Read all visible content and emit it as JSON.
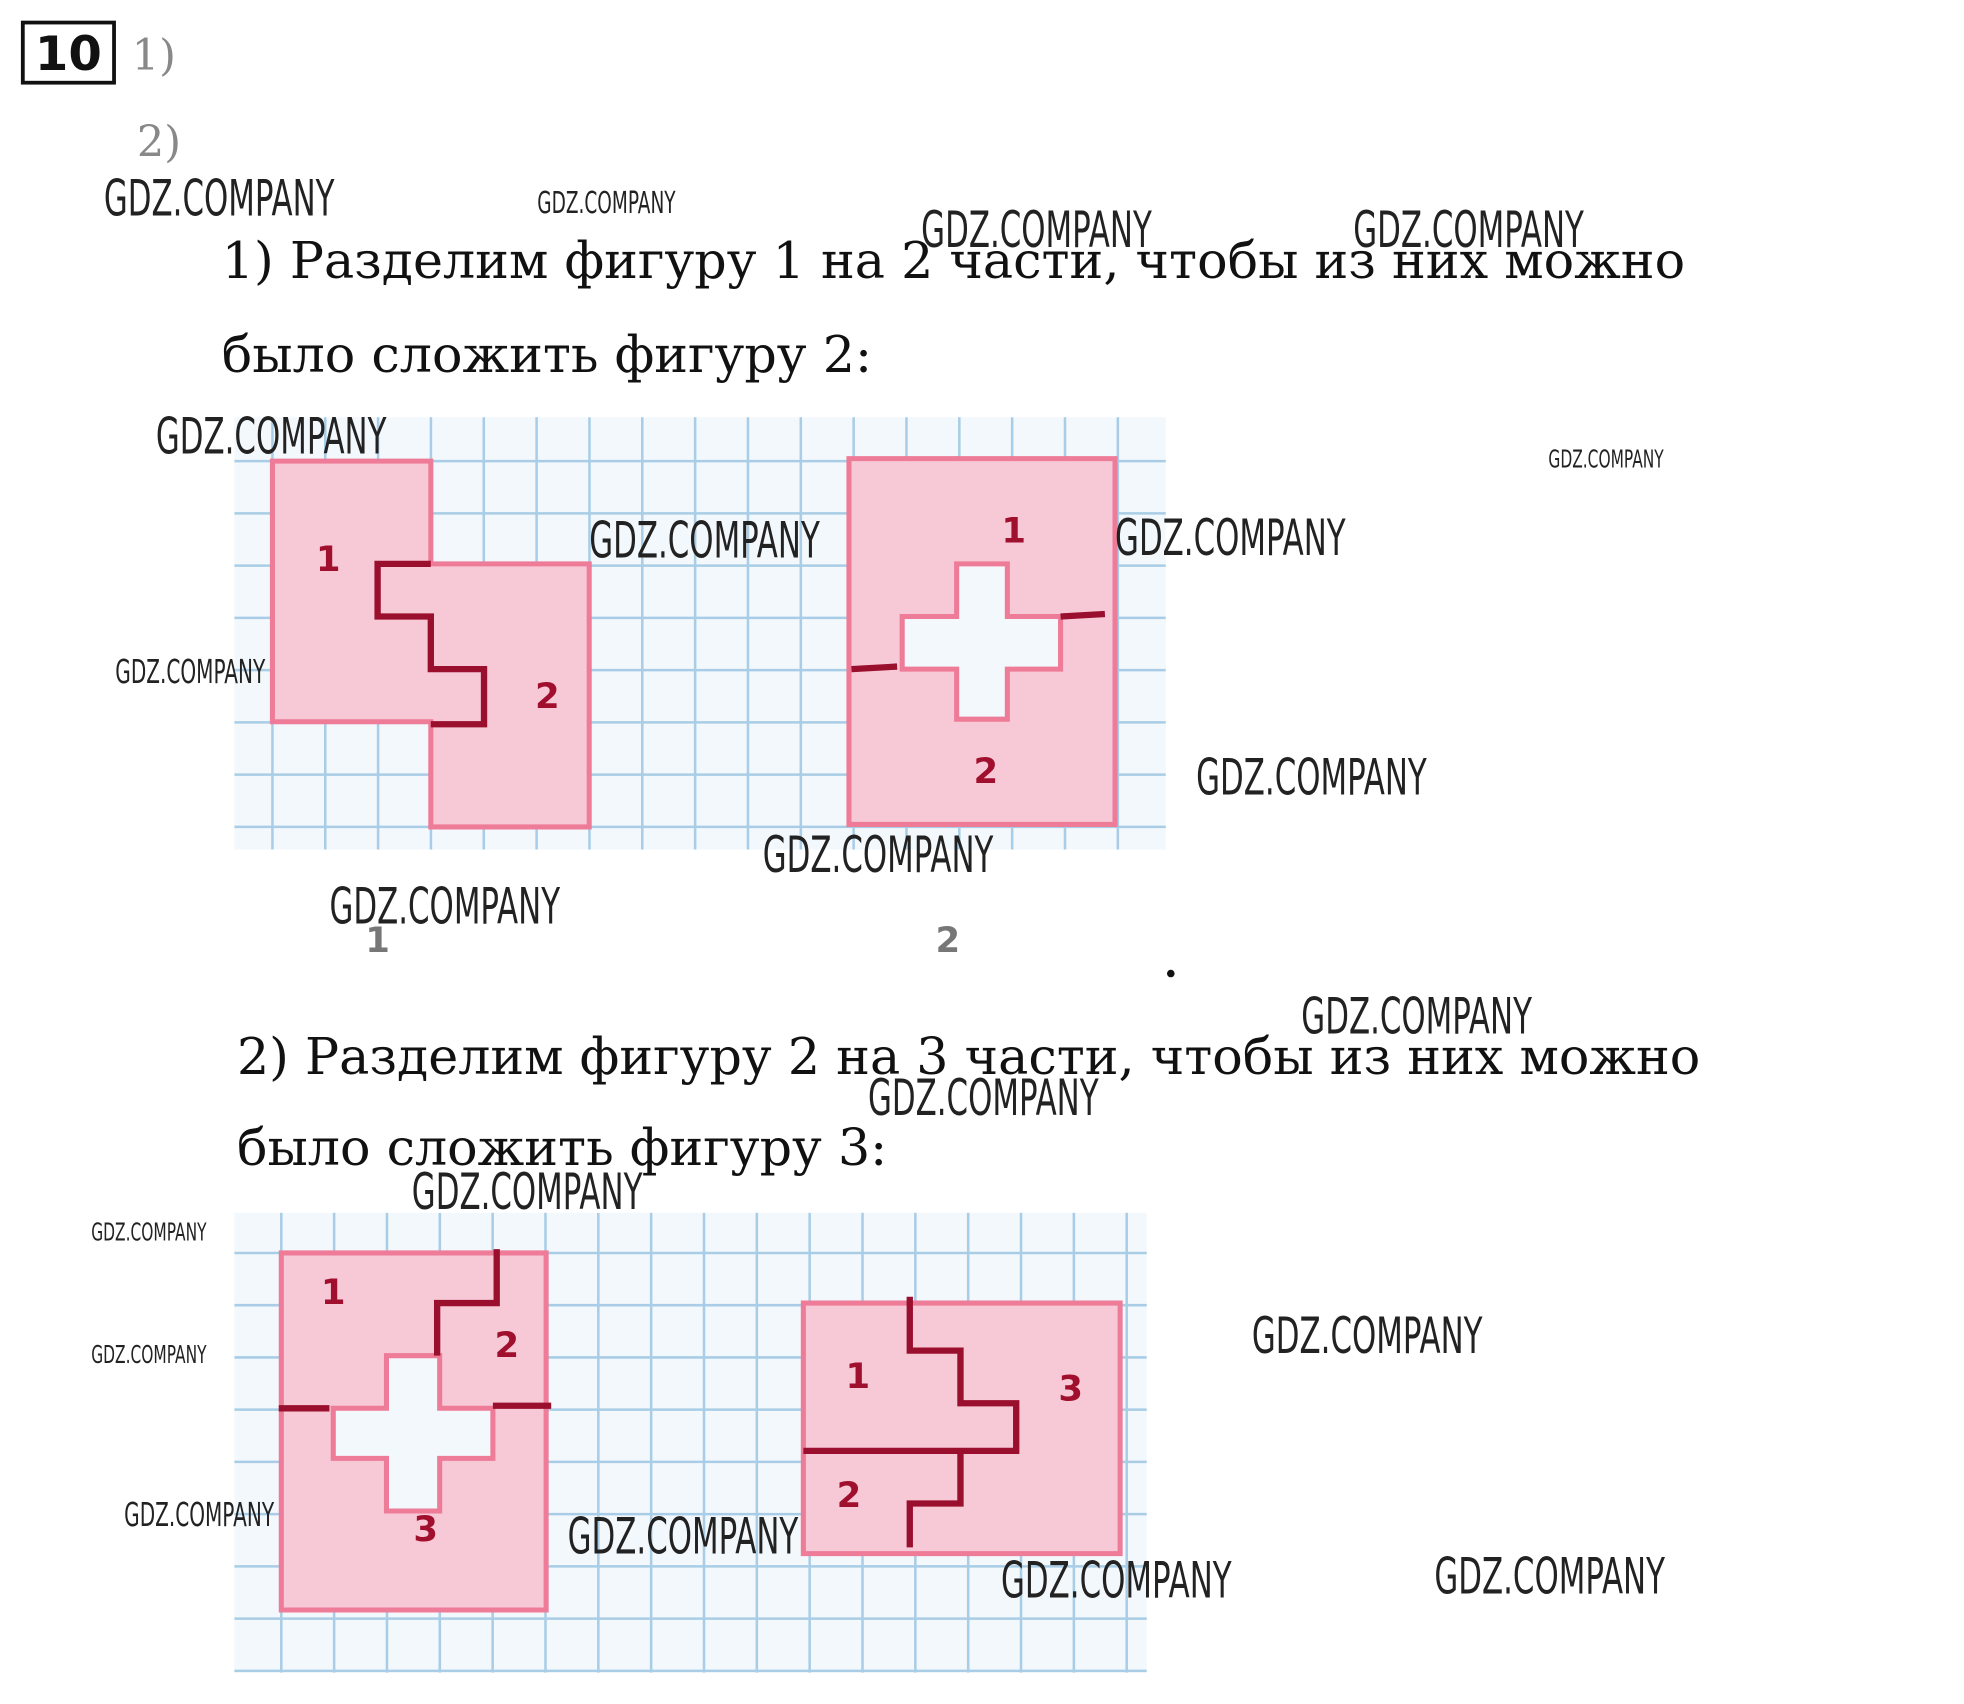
{
  "header": {
    "number": "10",
    "items": [
      "1)",
      "2)"
    ]
  },
  "parts": [
    {
      "lines": [
        "1) Разделим фигуру 1 на 2 части, чтобы из них можно",
        "было сложить фигуру 2:"
      ],
      "figure_labels": [
        "1",
        "2",
        "1",
        "2"
      ],
      "captions": [
        "1",
        "2"
      ]
    },
    {
      "lines": [
        "2) Разделим фигуру 2 на 3 части, чтобы из них можно",
        "было сложить фигуру 3:"
      ],
      "figure_labels": [
        "1",
        "2",
        "3",
        "1",
        "3",
        "2"
      ]
    }
  ],
  "watermarks": [
    "GDZ.COMPANY",
    "GDZ.COMPANY",
    "GDZ.COMPANY",
    "GDZ.COMPANY",
    "GDZ.COMPANY",
    "GDZ.COMPANY",
    "GDZ.COMPANY",
    "GDZ.COMPANY",
    "GDZ.COMPANY",
    "GDZ.COMPANY",
    "GDZ.COMPANY",
    "GDZ.COMPANY",
    "GDZ.COMPANY",
    "GDZ.COMPANY",
    "GDZ.COMPANY",
    "GDZ.COMPANY",
    "GDZ.COMPANY",
    "GDZ.COMPANY",
    "GDZ.COMPANY",
    "GDZ.COMPANY",
    "GDZ.COMPANY",
    "GDZ.COMPANY"
  ]
}
